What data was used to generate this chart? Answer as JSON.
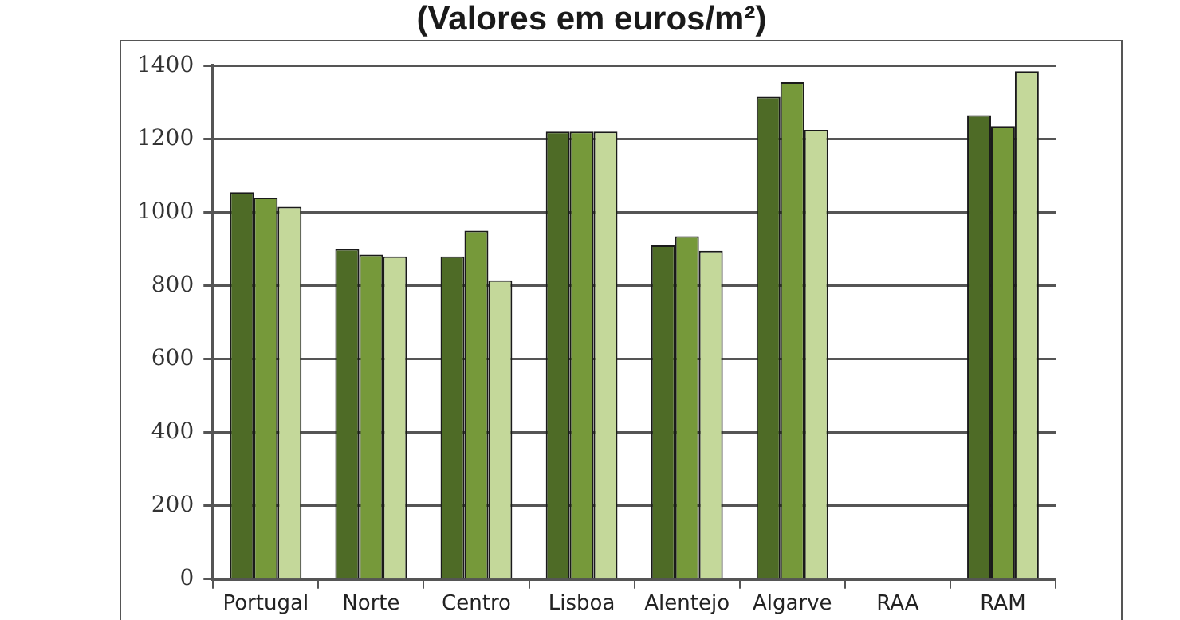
{
  "chart_data": {
    "type": "bar",
    "title": "(Valores em euros/m²)",
    "categories": [
      "Portugal",
      "Norte",
      "Centro",
      "Lisboa",
      "Alentejo",
      "Algarve",
      "RAA",
      "RAM"
    ],
    "series": [
      {
        "color": "#4e6b26",
        "values": [
          1055,
          900,
          880,
          1220,
          910,
          1315,
          null,
          1265
        ]
      },
      {
        "color": "#76993a",
        "values": [
          1040,
          885,
          950,
          1220,
          935,
          1355,
          null,
          1235
        ]
      },
      {
        "color": "#c4d89a",
        "values": [
          1015,
          880,
          815,
          1220,
          895,
          1225,
          null,
          1385
        ]
      }
    ],
    "ylim": [
      0,
      1400
    ],
    "yticks": [
      0,
      200,
      400,
      600,
      800,
      1000,
      1200,
      1400
    ],
    "grid": "y",
    "legend": false
  }
}
